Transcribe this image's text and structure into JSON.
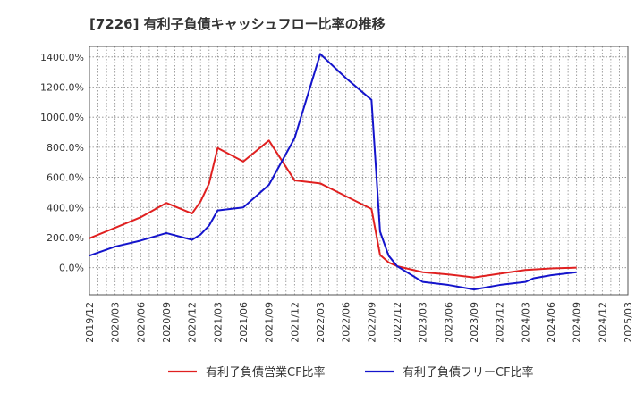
{
  "chart_data": {
    "type": "line",
    "title": "[7226]  有利子負債キャッシュフロー比率の推移",
    "xlabel": "",
    "ylabel": "",
    "x_ticks": [
      "2019/12",
      "2020/03",
      "2020/06",
      "2020/09",
      "2020/12",
      "2021/03",
      "2021/06",
      "2021/09",
      "2021/12",
      "2022/03",
      "2022/06",
      "2022/09",
      "2022/12",
      "2023/03",
      "2023/06",
      "2023/09",
      "2023/12",
      "2024/03",
      "2024/06",
      "2024/09",
      "2024/12",
      "2025/03"
    ],
    "y_ticks": [
      "0.0%",
      "200.0%",
      "400.0%",
      "600.0%",
      "800.0%",
      "1000.0%",
      "1200.0%",
      "1400.0%"
    ],
    "ylim": [
      -180,
      1470
    ],
    "grid": true,
    "legend_position": "bottom",
    "series": [
      {
        "name": "有利子負債営業CF比率",
        "color": "#e02020",
        "points": [
          [
            "2019/12",
            195
          ],
          [
            "2020/03",
            265
          ],
          [
            "2020/06",
            335
          ],
          [
            "2020/09",
            430
          ],
          [
            "2020/12",
            360
          ],
          [
            "2021/01",
            440
          ],
          [
            "2021/02",
            560
          ],
          [
            "2021/03",
            795
          ],
          [
            "2021/06",
            705
          ],
          [
            "2021/09",
            845
          ],
          [
            "2021/12",
            580
          ],
          [
            "2022/03",
            560
          ],
          [
            "2022/06",
            475
          ],
          [
            "2022/09",
            390
          ],
          [
            "2022/10",
            85
          ],
          [
            "2022/11",
            35
          ],
          [
            "2022/12",
            10
          ],
          [
            "2023/03",
            -30
          ],
          [
            "2023/06",
            -45
          ],
          [
            "2023/09",
            -65
          ],
          [
            "2023/12",
            -40
          ],
          [
            "2024/03",
            -15
          ],
          [
            "2024/06",
            -5
          ],
          [
            "2024/09",
            0
          ]
        ]
      },
      {
        "name": "有利子負債フリーCF比率",
        "color": "#1414cc",
        "points": [
          [
            "2019/12",
            80
          ],
          [
            "2020/03",
            140
          ],
          [
            "2020/06",
            180
          ],
          [
            "2020/09",
            230
          ],
          [
            "2020/12",
            185
          ],
          [
            "2021/01",
            220
          ],
          [
            "2021/02",
            280
          ],
          [
            "2021/03",
            380
          ],
          [
            "2021/06",
            400
          ],
          [
            "2021/09",
            550
          ],
          [
            "2021/12",
            860
          ],
          [
            "2022/03",
            1420
          ],
          [
            "2022/06",
            1260
          ],
          [
            "2022/09",
            1115
          ],
          [
            "2022/10",
            240
          ],
          [
            "2022/11",
            80
          ],
          [
            "2022/12",
            10
          ],
          [
            "2023/03",
            -95
          ],
          [
            "2023/06",
            -115
          ],
          [
            "2023/09",
            -145
          ],
          [
            "2023/12",
            -115
          ],
          [
            "2024/03",
            -95
          ],
          [
            "2024/04",
            -70
          ],
          [
            "2024/06",
            -50
          ],
          [
            "2024/09",
            -30
          ]
        ]
      }
    ]
  }
}
